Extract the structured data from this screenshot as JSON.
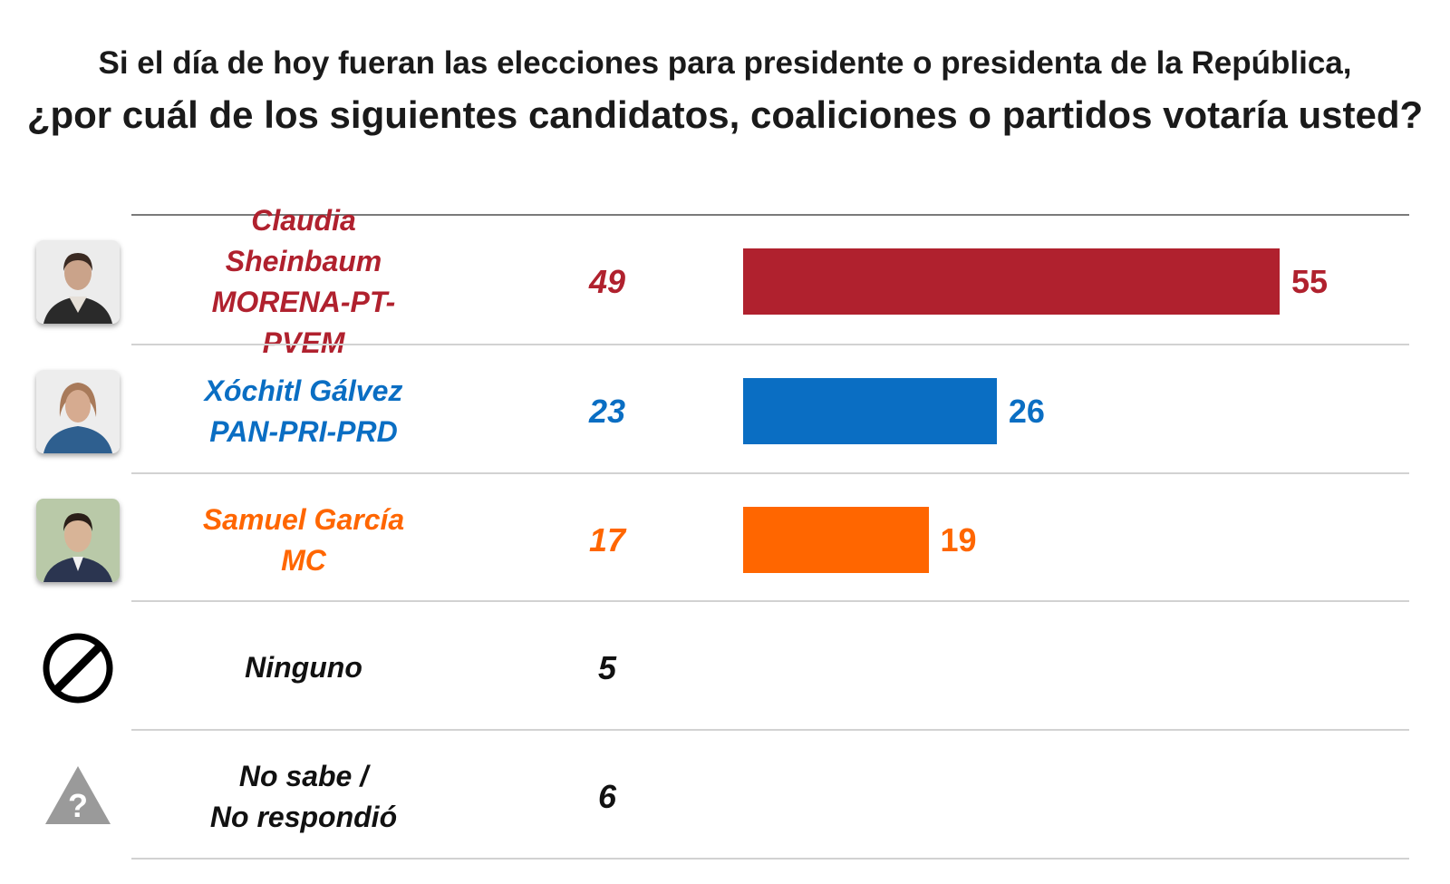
{
  "title_line1": "Si el día de hoy fueran las elecciones para presidente o presidenta de la República,",
  "title_line2": "¿por cuál de los siguientes candidatos, coaliciones o partidos votaría usted?",
  "chart_data": {
    "type": "bar",
    "categories": [
      "Claudia Sheinbaum MORENA-PT-PVEM",
      "Xóchitl Gálvez PAN-PRI-PRD",
      "Samuel García MC",
      "Ninguno",
      "No sabe / No respondió"
    ],
    "series": [
      {
        "values": [
          49,
          23,
          17,
          5,
          6
        ]
      },
      {
        "values": [
          55,
          26,
          19,
          null,
          null
        ]
      }
    ],
    "xlim": [
      0,
      55
    ]
  },
  "rows": [
    {
      "line1": "Claudia Sheinbaum",
      "line2": "MORENA-PT-PVEM",
      "value": "49",
      "bar_label": "55",
      "bar_value": 55,
      "color": "#B0212E",
      "icon": "candidate-photo"
    },
    {
      "line1": "Xóchitl Gálvez",
      "line2": "PAN-PRI-PRD",
      "value": "23",
      "bar_label": "26",
      "bar_value": 26,
      "color": "#0A6EC3",
      "icon": "candidate-photo"
    },
    {
      "line1": "Samuel García",
      "line2": "MC",
      "value": "17",
      "bar_label": "19",
      "bar_value": 19,
      "color": "#FF6600",
      "icon": "candidate-photo"
    },
    {
      "line1": "Ninguno",
      "line2": "",
      "value": "5",
      "bar_label": "",
      "bar_value": null,
      "color": "#000000",
      "icon": "prohibited-icon"
    },
    {
      "line1": "No sabe /",
      "line2": "No respondió",
      "value": "6",
      "bar_label": "",
      "bar_value": null,
      "color": "#000000",
      "icon": "question-triangle-icon"
    }
  ]
}
